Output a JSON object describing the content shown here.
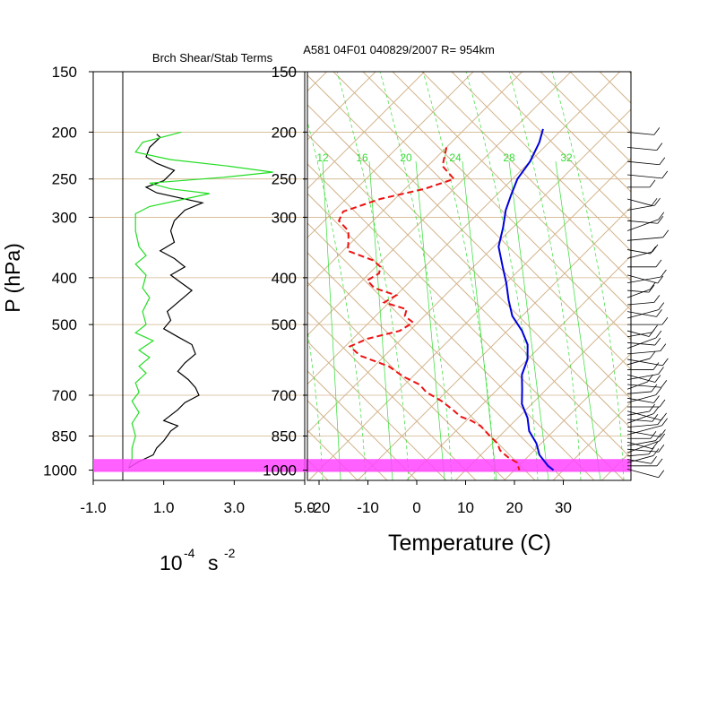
{
  "figure": {
    "title": "A581 04F01 040829/2007 R= 954km",
    "left_panel_title": "Brch Shear/Stab Terms",
    "y_axis_label": "P (hPa)",
    "left_xlabel_base": "10",
    "left_xlabel_exp1": "-4",
    "left_xlabel_unit": "s",
    "left_xlabel_exp2": "-2",
    "right_xlabel": "Temperature (C)"
  },
  "colors": {
    "grid": "#d2b48c",
    "mixing_ratio": "#33dd33",
    "temperature": "#0000dd",
    "dewpoint": "#ee1111",
    "highlight_band": "#ff44ff",
    "shear_term": "#000000",
    "stability_term": "#22dd22"
  },
  "chart_data": [
    {
      "type": "line",
      "name": "left-panel",
      "title": "Brch Shear/Stab Terms",
      "ylabel": "P (hPa)",
      "y_scale": "log",
      "ylim": [
        1050,
        150
      ],
      "xlim": [
        -1.0,
        5.0
      ],
      "xticks": [
        "-1.0",
        "1.0",
        "3.0",
        "5.0"
      ],
      "yticks": [
        "150",
        "200",
        "250",
        "300",
        "400",
        "500",
        "700",
        "850",
        "1000"
      ],
      "series": [
        {
          "color": "#000000",
          "points": [
            [
              0.8,
              202
            ],
            [
              0.9,
              205
            ],
            [
              0.6,
              215
            ],
            [
              0.5,
              225
            ],
            [
              0.8,
              232
            ],
            [
              1.3,
              240
            ],
            [
              1.0,
              252
            ],
            [
              0.5,
              260
            ],
            [
              0.8,
              267
            ],
            [
              1.5,
              274
            ],
            [
              2.1,
              280
            ],
            [
              1.6,
              290
            ],
            [
              1.3,
              305
            ],
            [
              1.2,
              320
            ],
            [
              1.3,
              338
            ],
            [
              0.9,
              352
            ],
            [
              1.3,
              365
            ],
            [
              1.6,
              380
            ],
            [
              1.2,
              395
            ],
            [
              1.5,
              410
            ],
            [
              1.8,
              425
            ],
            [
              1.4,
              450
            ],
            [
              1.1,
              470
            ],
            [
              1.2,
              490
            ],
            [
              1.0,
              510
            ],
            [
              1.4,
              530
            ],
            [
              1.8,
              550
            ],
            [
              1.9,
              575
            ],
            [
              1.6,
              600
            ],
            [
              1.4,
              625
            ],
            [
              1.7,
              650
            ],
            [
              1.9,
              675
            ],
            [
              2.0,
              700
            ],
            [
              1.6,
              725
            ],
            [
              1.4,
              750
            ],
            [
              1.2,
              770
            ],
            [
              1.0,
              790
            ],
            [
              1.4,
              810
            ],
            [
              1.2,
              830
            ],
            [
              1.1,
              850
            ],
            [
              1.0,
              870
            ],
            [
              0.8,
              900
            ],
            [
              0.7,
              930
            ],
            [
              0.3,
              960
            ],
            [
              0.0,
              990
            ]
          ]
        },
        {
          "color": "#22dd22",
          "points": [
            [
              1.5,
              200
            ],
            [
              0.4,
              210
            ],
            [
              0.2,
              220
            ],
            [
              1.2,
              228
            ],
            [
              2.8,
              235
            ],
            [
              4.1,
              242
            ],
            [
              2.7,
              248
            ],
            [
              0.6,
              255
            ],
            [
              1.2,
              262
            ],
            [
              2.3,
              268
            ],
            [
              1.6,
              275
            ],
            [
              0.6,
              285
            ],
            [
              0.2,
              295
            ],
            [
              0.2,
              320
            ],
            [
              0.3,
              345
            ],
            [
              0.5,
              360
            ],
            [
              0.2,
              375
            ],
            [
              0.5,
              395
            ],
            [
              0.4,
              420
            ],
            [
              0.6,
              440
            ],
            [
              0.4,
              470
            ],
            [
              0.5,
              500
            ],
            [
              0.2,
              520
            ],
            [
              0.7,
              540
            ],
            [
              0.3,
              565
            ],
            [
              0.6,
              585
            ],
            [
              0.3,
              610
            ],
            [
              0.5,
              630
            ],
            [
              0.2,
              660
            ],
            [
              0.3,
              690
            ],
            [
              0.1,
              720
            ],
            [
              0.3,
              760
            ],
            [
              0.1,
              800
            ],
            [
              0.2,
              850
            ],
            [
              0.1,
              900
            ],
            [
              0.1,
              950
            ],
            [
              0.0,
              990
            ]
          ]
        }
      ]
    },
    {
      "type": "line",
      "name": "skew-t",
      "xlabel": "Temperature (C)",
      "y_scale": "log",
      "ylim": [
        1050,
        150
      ],
      "xlim": [
        -24,
        42
      ],
      "skew": true,
      "xticks": [
        "-20",
        "-10",
        "0",
        "10",
        "20",
        "30"
      ],
      "yticks": [
        "150",
        "200",
        "250",
        "300",
        "400",
        "500",
        "700",
        "850",
        "1000"
      ],
      "mixing_ratio_labels": [
        "12",
        "16",
        "20",
        "24",
        "28",
        "32"
      ],
      "highlight_band_hpa": [
        965,
        1000
      ],
      "series": [
        {
          "color": "#0000dd",
          "points": [
            [
              -44,
              197
            ],
            [
              -42,
              210
            ],
            [
              -40,
              230
            ],
            [
              -39,
              250
            ],
            [
              -37,
              270
            ],
            [
              -35,
              290
            ],
            [
              -32,
              315
            ],
            [
              -29,
              345
            ],
            [
              -24,
              380
            ],
            [
              -20,
              410
            ],
            [
              -16,
              445
            ],
            [
              -12,
              480
            ],
            [
              -7,
              515
            ],
            [
              -3,
              550
            ],
            [
              0,
              590
            ],
            [
              2,
              635
            ],
            [
              5,
              680
            ],
            [
              8,
              730
            ],
            [
              12,
              780
            ],
            [
              15,
              830
            ],
            [
              19,
              880
            ],
            [
              22,
              930
            ],
            [
              26,
              980
            ],
            [
              28,
              1000
            ]
          ]
        },
        {
          "color": "#ee1111",
          "points": [
            [
              -60,
              215
            ],
            [
              -57,
              235
            ],
            [
              -52,
              250
            ],
            [
              -56,
              262
            ],
            [
              -63,
              275
            ],
            [
              -68,
              292
            ],
            [
              -67,
              305
            ],
            [
              -63,
              320
            ],
            [
              -61,
              335
            ],
            [
              -59,
              352
            ],
            [
              -52,
              368
            ],
            [
              -49,
              380
            ],
            [
              -48,
              392
            ],
            [
              -49,
              405
            ],
            [
              -46,
              420
            ],
            [
              -40,
              435
            ],
            [
              -41,
              450
            ],
            [
              -35,
              465
            ],
            [
              -34,
              480
            ],
            [
              -31,
              495
            ],
            [
              -32,
              515
            ],
            [
              -37,
              535
            ],
            [
              -39,
              555
            ],
            [
              -35,
              580
            ],
            [
              -27,
              610
            ],
            [
              -22,
              640
            ],
            [
              -17,
              665
            ],
            [
              -14,
              690
            ],
            [
              -9,
              720
            ],
            [
              -5,
              750
            ],
            [
              -2,
              775
            ],
            [
              1,
              790
            ],
            [
              4,
              810
            ],
            [
              6,
              830
            ],
            [
              8,
              850
            ],
            [
              11,
              880
            ],
            [
              13,
              910
            ],
            [
              16,
              940
            ],
            [
              19,
              965
            ],
            [
              21,
              1000
            ]
          ]
        }
      ]
    }
  ]
}
